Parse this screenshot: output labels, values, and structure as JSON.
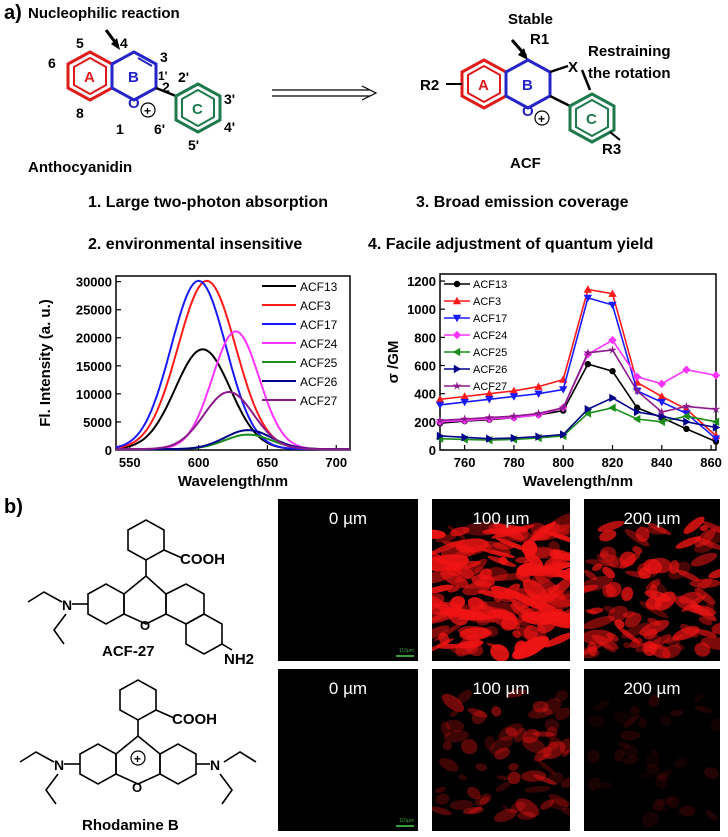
{
  "panel_a": {
    "label": "a)",
    "anthocyanidin": {
      "title": "Anthocyanidin",
      "reaction": "Nucleophilic reaction",
      "ring_a": "A",
      "ring_b": "B",
      "ring_c": "C",
      "positions": [
        "5",
        "4",
        "3",
        "6",
        "2",
        "2'",
        "3'",
        "1'",
        "8",
        "1",
        "6'",
        "4'",
        "5'"
      ],
      "oxygen": "O",
      "charge": "+"
    },
    "acf": {
      "title": "ACF",
      "stable": "Stable",
      "r1": "R1",
      "r2": "R2",
      "r3": "R3",
      "x": "X",
      "restrain": [
        "Restraining",
        "the rotation"
      ]
    },
    "features": [
      "1. Large two-photon absorption",
      "3. Broad emission coverage",
      "2. environmental insensitive",
      "4. Facile adjustment of quantum yield"
    ]
  },
  "panel_b": {
    "label": "b)",
    "acf27_name": "ACF-27",
    "rhodb_name": "Rhodamine B",
    "cooh": "COOH",
    "nh2": "NH2",
    "depths": [
      "0 µm",
      "100 µm",
      "200 µm"
    ],
    "scale_bar": "110µm"
  },
  "chart_data": [
    {
      "type": "line",
      "xlabel": "Wavelength/nm",
      "ylabel": "Fl. Intensity (a. u.)",
      "xlim": [
        540,
        710
      ],
      "ylim": [
        0,
        31000
      ],
      "xticks": [
        550,
        600,
        650,
        700
      ],
      "yticks": [
        0,
        5000,
        10000,
        15000,
        20000,
        25000,
        30000
      ],
      "legend": "top-right",
      "series": [
        {
          "name": "ACF13",
          "color": "#000000",
          "peak_x": 603,
          "peak_y": 17800,
          "sigma": 20
        },
        {
          "name": "ACF3",
          "color": "#ff1a1a",
          "peak_x": 606,
          "peak_y": 30000,
          "sigma": 21
        },
        {
          "name": "ACF17",
          "color": "#1a1aff",
          "peak_x": 600,
          "peak_y": 30000,
          "sigma": 20
        },
        {
          "name": "ACF24",
          "color": "#ff33ff",
          "peak_x": 627,
          "peak_y": 21000,
          "sigma": 17
        },
        {
          "name": "ACF25",
          "color": "#1a8c1a",
          "peak_x": 636,
          "peak_y": 2600,
          "sigma": 17
        },
        {
          "name": "ACF26",
          "color": "#00008b",
          "peak_x": 636,
          "peak_y": 3400,
          "sigma": 17
        },
        {
          "name": "ACF27",
          "color": "#8b1a8b",
          "peak_x": 622,
          "peak_y": 10200,
          "sigma": 18
        }
      ]
    },
    {
      "type": "line",
      "xlabel": "Wavelength/nm",
      "ylabel": "σ /GM",
      "xlim": [
        750,
        862
      ],
      "ylim": [
        0,
        1250
      ],
      "xticks": [
        760,
        780,
        800,
        820,
        840,
        860
      ],
      "yticks": [
        0,
        200,
        400,
        600,
        800,
        1000,
        1200
      ],
      "legend": "top-left",
      "x": [
        750,
        760,
        770,
        780,
        790,
        800,
        810,
        820,
        830,
        840,
        850,
        862
      ],
      "series": [
        {
          "name": "ACF13",
          "color": "#000000",
          "marker": "circle",
          "values": [
            190,
            205,
            215,
            230,
            250,
            280,
            610,
            560,
            300,
            230,
            150,
            60
          ]
        },
        {
          "name": "ACF3",
          "color": "#ff1a1a",
          "marker": "triangle-up",
          "values": [
            360,
            380,
            400,
            420,
            450,
            500,
            1140,
            1110,
            480,
            380,
            290,
            100
          ]
        },
        {
          "name": "ACF17",
          "color": "#1a1aff",
          "marker": "triangle-down",
          "values": [
            320,
            340,
            360,
            380,
            400,
            430,
            1080,
            1030,
            420,
            340,
            260,
            80
          ]
        },
        {
          "name": "ACF24",
          "color": "#ff33ff",
          "marker": "diamond",
          "values": [
            200,
            210,
            220,
            230,
            250,
            300,
            680,
            780,
            520,
            470,
            570,
            530
          ]
        },
        {
          "name": "ACF25",
          "color": "#1a8c1a",
          "marker": "triangle-left",
          "values": [
            80,
            75,
            70,
            75,
            85,
            100,
            260,
            300,
            220,
            200,
            240,
            200
          ]
        },
        {
          "name": "ACF26",
          "color": "#00008b",
          "marker": "triangle-right",
          "values": [
            100,
            90,
            80,
            85,
            95,
            110,
            290,
            370,
            270,
            240,
            200,
            160
          ]
        },
        {
          "name": "ACF27",
          "color": "#8b1a8b",
          "marker": "star",
          "values": [
            210,
            220,
            230,
            240,
            260,
            300,
            690,
            710,
            420,
            270,
            310,
            290
          ]
        }
      ]
    }
  ],
  "micro_images": [
    {
      "row": "acf27",
      "depth_index": 0,
      "brightness": 0.0
    },
    {
      "row": "acf27",
      "depth_index": 1,
      "brightness": 1.0
    },
    {
      "row": "acf27",
      "depth_index": 2,
      "brightness": 0.55
    },
    {
      "row": "rhodb",
      "depth_index": 0,
      "brightness": 0.0
    },
    {
      "row": "rhodb",
      "depth_index": 1,
      "brightness": 0.3
    },
    {
      "row": "rhodb",
      "depth_index": 2,
      "brightness": 0.05
    }
  ]
}
